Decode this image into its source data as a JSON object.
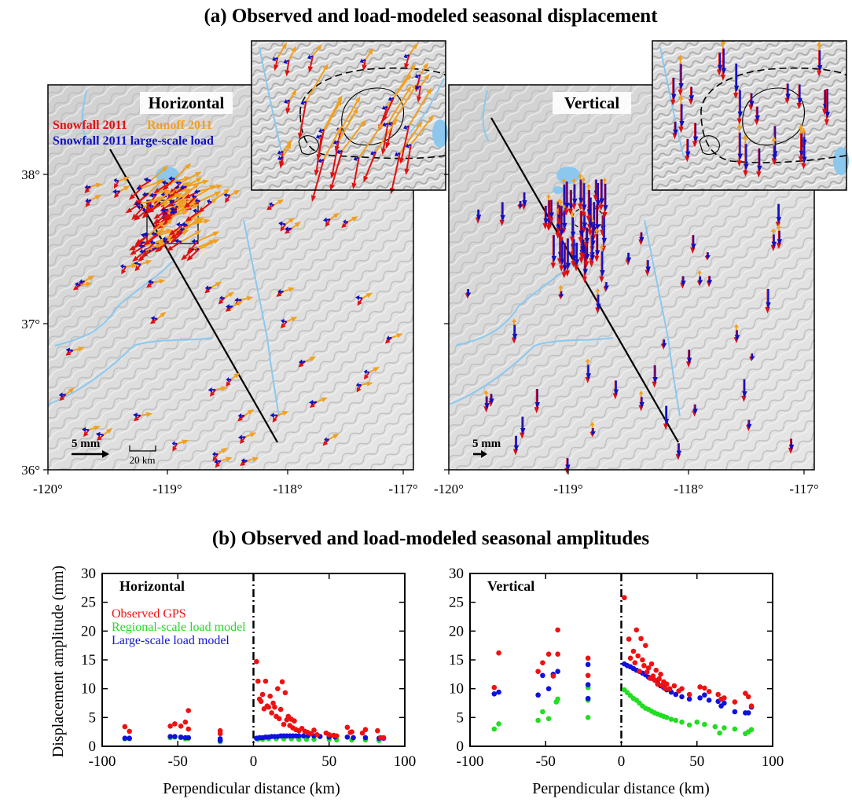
{
  "panel_a": {
    "title": "(a) Observed and load-modeled seasonal displacement",
    "lon_ticks": [
      "-120°",
      "-119°",
      "-118°",
      "-117°"
    ],
    "lat_ticks": [
      "38°",
      "37°",
      "36°"
    ],
    "colors": {
      "snowfall": "#e01010",
      "runoff": "#f0a020",
      "largescale": "#1010c0",
      "water": "#8cc8ee",
      "terrain": "#d8d8d8"
    },
    "maps": [
      {
        "label": "Horizontal",
        "legend": [
          "Snowfall 2011",
          "Runoff 2011",
          "Snowfall 2011 large-scale load"
        ],
        "scale_arrow": "5 mm",
        "distance_scale": "20 km"
      },
      {
        "label": "Vertical",
        "scale_arrow": "5 mm"
      }
    ]
  },
  "panel_b": {
    "title": "(b) Observed and load-modeled seasonal amplitudes",
    "ylabel": "Displacement amplitude (mm)",
    "xlabel": "Perpendicular distance (km)"
  },
  "chart_data": [
    {
      "type": "scatter",
      "title": "Horizontal",
      "xlabel": "Perpendicular distance (km)",
      "ylabel": "Displacement amplitude (mm)",
      "xlim": [
        -100,
        100
      ],
      "ylim": [
        0,
        30
      ],
      "x_ticks": [
        -100,
        -50,
        0,
        50,
        100
      ],
      "y_ticks": [
        0,
        5,
        10,
        15,
        20,
        25,
        30
      ],
      "legend_placement": "top-left",
      "series": [
        {
          "name": "Observed GPS",
          "color": "#ee1111",
          "points": [
            [
              -85,
              3.4
            ],
            [
              -82,
              2.6
            ],
            [
              -55,
              3.5
            ],
            [
              -52,
              3.9
            ],
            [
              -48,
              3.5
            ],
            [
              -45,
              4.2
            ],
            [
              -43,
              6.2
            ],
            [
              -43,
              3.0
            ],
            [
              -22,
              2.7
            ],
            [
              -22,
              2.2
            ],
            [
              2,
              14.7
            ],
            [
              3,
              11.3
            ],
            [
              4,
              8.2
            ],
            [
              5,
              7.8
            ],
            [
              6,
              9.0
            ],
            [
              7,
              6.5
            ],
            [
              8,
              11.3
            ],
            [
              9,
              7.0
            ],
            [
              10,
              6.8
            ],
            [
              11,
              8.7
            ],
            [
              12,
              5.8
            ],
            [
              13,
              7.5
            ],
            [
              14,
              6.8
            ],
            [
              15,
              5.2
            ],
            [
              16,
              10.0
            ],
            [
              17,
              4.8
            ],
            [
              18,
              6.4
            ],
            [
              19,
              11.2
            ],
            [
              20,
              3.8
            ],
            [
              21,
              9.3
            ],
            [
              22,
              4.6
            ],
            [
              23,
              5.2
            ],
            [
              24,
              3.6
            ],
            [
              25,
              4.7
            ],
            [
              26,
              3.2
            ],
            [
              27,
              4.4
            ],
            [
              28,
              2.9
            ],
            [
              30,
              2.7
            ],
            [
              32,
              3.1
            ],
            [
              34,
              2.6
            ],
            [
              36,
              2.4
            ],
            [
              38,
              2.2
            ],
            [
              40,
              2.8
            ],
            [
              42,
              2.0
            ],
            [
              48,
              2.3
            ],
            [
              50,
              2.0
            ],
            [
              53,
              1.9
            ],
            [
              55,
              1.8
            ],
            [
              62,
              3.3
            ],
            [
              64,
              2.4
            ],
            [
              65,
              2.5
            ],
            [
              72,
              2.3
            ],
            [
              74,
              2.9
            ],
            [
              82,
              2.7
            ],
            [
              84,
              1.5
            ],
            [
              86,
              1.5
            ]
          ]
        },
        {
          "name": "Regional-scale load model",
          "color": "#22dd22",
          "points": [
            [
              -85,
              1.3
            ],
            [
              -82,
              1.3
            ],
            [
              -55,
              1.5
            ],
            [
              -52,
              1.6
            ],
            [
              -48,
              1.5
            ],
            [
              -45,
              1.3
            ],
            [
              -43,
              1.4
            ],
            [
              -22,
              0.8
            ],
            [
              3,
              1.2
            ],
            [
              6,
              1.2
            ],
            [
              10,
              1.3
            ],
            [
              15,
              1.3
            ],
            [
              20,
              1.3
            ],
            [
              25,
              1.3
            ],
            [
              30,
              1.2
            ],
            [
              35,
              1.2
            ],
            [
              40,
              1.2
            ],
            [
              50,
              1.2
            ],
            [
              55,
              1.1
            ],
            [
              65,
              1.1
            ],
            [
              74,
              1.1
            ],
            [
              83,
              1.0
            ]
          ]
        },
        {
          "name": "Large-scale load model",
          "color": "#1111dd",
          "points": [
            [
              -85,
              1.4
            ],
            [
              -82,
              1.4
            ],
            [
              -55,
              1.7
            ],
            [
              -52,
              1.7
            ],
            [
              -48,
              1.6
            ],
            [
              -45,
              1.5
            ],
            [
              -43,
              1.5
            ],
            [
              -22,
              1.3
            ],
            [
              -22,
              1.0
            ],
            [
              2,
              1.4
            ],
            [
              4,
              1.5
            ],
            [
              6,
              1.5
            ],
            [
              8,
              1.6
            ],
            [
              10,
              1.6
            ],
            [
              12,
              1.7
            ],
            [
              14,
              1.7
            ],
            [
              16,
              1.7
            ],
            [
              18,
              1.8
            ],
            [
              20,
              1.8
            ],
            [
              22,
              1.8
            ],
            [
              24,
              1.8
            ],
            [
              26,
              1.8
            ],
            [
              28,
              1.8
            ],
            [
              30,
              1.8
            ],
            [
              33,
              1.8
            ],
            [
              36,
              1.8
            ],
            [
              40,
              1.8
            ],
            [
              44,
              1.7
            ],
            [
              50,
              1.6
            ],
            [
              54,
              1.6
            ],
            [
              62,
              1.6
            ],
            [
              66,
              1.5
            ],
            [
              74,
              1.5
            ],
            [
              83,
              1.4
            ],
            [
              86,
              1.4
            ]
          ]
        }
      ]
    },
    {
      "type": "scatter",
      "title": "Vertical",
      "xlabel": "Perpendicular distance (km)",
      "xlim": [
        -100,
        100
      ],
      "ylim": [
        0,
        30
      ],
      "x_ticks": [
        -100,
        -50,
        0,
        50,
        100
      ],
      "y_ticks": [
        0,
        5,
        10,
        15,
        20,
        25,
        30
      ],
      "series": [
        {
          "name": "Observed GPS",
          "color": "#ee1111",
          "points": [
            [
              -84,
              10.2
            ],
            [
              -81,
              16.2
            ],
            [
              -55,
              13.0
            ],
            [
              -52,
              14.5
            ],
            [
              -48,
              16.0
            ],
            [
              -45,
              12.2
            ],
            [
              -42,
              20.2
            ],
            [
              -42,
              16.0
            ],
            [
              -22,
              15.3
            ],
            [
              -22,
              12.3
            ],
            [
              2,
              25.8
            ],
            [
              5,
              18.6
            ],
            [
              6,
              15.3
            ],
            [
              8,
              16.5
            ],
            [
              9,
              14.5
            ],
            [
              10,
              20.2
            ],
            [
              11,
              15.7
            ],
            [
              12,
              13.0
            ],
            [
              13,
              18.7
            ],
            [
              14,
              15.0
            ],
            [
              15,
              14.0
            ],
            [
              16,
              17.5
            ],
            [
              17,
              12.9
            ],
            [
              18,
              13.6
            ],
            [
              19,
              11.8
            ],
            [
              20,
              14.3
            ],
            [
              21,
              12.2
            ],
            [
              22,
              11.5
            ],
            [
              23,
              13.2
            ],
            [
              24,
              10.8
            ],
            [
              25,
              11.7
            ],
            [
              26,
              12.5
            ],
            [
              27,
              10.6
            ],
            [
              28,
              11.2
            ],
            [
              29,
              10.0
            ],
            [
              30,
              10.8
            ],
            [
              32,
              10.0
            ],
            [
              35,
              10.5
            ],
            [
              38,
              9.6
            ],
            [
              40,
              10.0
            ],
            [
              45,
              9.0
            ],
            [
              52,
              10.3
            ],
            [
              55,
              10.1
            ],
            [
              58,
              9.5
            ],
            [
              64,
              9.0
            ],
            [
              66,
              8.2
            ],
            [
              68,
              8.4
            ],
            [
              75,
              7.7
            ],
            [
              82,
              9.2
            ],
            [
              84,
              8.6
            ],
            [
              86,
              7.0
            ]
          ]
        },
        {
          "name": "Regional-scale load model",
          "color": "#22dd22",
          "points": [
            [
              -84,
              3.0
            ],
            [
              -81,
              3.9
            ],
            [
              -55,
              4.5
            ],
            [
              -52,
              6.0
            ],
            [
              -48,
              4.8
            ],
            [
              -43,
              7.7
            ],
            [
              -42,
              8.2
            ],
            [
              -22,
              10.2
            ],
            [
              -22,
              8.0
            ],
            [
              -22,
              5.0
            ],
            [
              2,
              9.8
            ],
            [
              4,
              9.3
            ],
            [
              6,
              8.8
            ],
            [
              8,
              8.3
            ],
            [
              10,
              8.0
            ],
            [
              12,
              7.5
            ],
            [
              14,
              7.0
            ],
            [
              16,
              6.6
            ],
            [
              18,
              6.4
            ],
            [
              20,
              6.1
            ],
            [
              22,
              5.8
            ],
            [
              24,
              5.6
            ],
            [
              26,
              5.4
            ],
            [
              28,
              5.2
            ],
            [
              30,
              5.0
            ],
            [
              33,
              4.7
            ],
            [
              36,
              4.5
            ],
            [
              40,
              4.2
            ],
            [
              45,
              3.7
            ],
            [
              50,
              4.2
            ],
            [
              55,
              3.8
            ],
            [
              62,
              3.4
            ],
            [
              65,
              2.3
            ],
            [
              68,
              3.2
            ],
            [
              75,
              3.0
            ],
            [
              82,
              2.2
            ],
            [
              84,
              2.5
            ],
            [
              86,
              2.9
            ]
          ]
        },
        {
          "name": "Large-scale load model",
          "color": "#1111dd",
          "points": [
            [
              -84,
              9.1
            ],
            [
              -81,
              9.4
            ],
            [
              -55,
              8.9
            ],
            [
              -52,
              12.3
            ],
            [
              -48,
              10.0
            ],
            [
              -45,
              12.5
            ],
            [
              -42,
              13.0
            ],
            [
              -22,
              14.2
            ],
            [
              -22,
              10.7
            ],
            [
              -22,
              8.3
            ],
            [
              2,
              14.3
            ],
            [
              4,
              14.0
            ],
            [
              6,
              13.8
            ],
            [
              8,
              13.5
            ],
            [
              10,
              13.2
            ],
            [
              12,
              13.0
            ],
            [
              14,
              12.7
            ],
            [
              16,
              12.4
            ],
            [
              18,
              12.0
            ],
            [
              20,
              11.8
            ],
            [
              22,
              11.5
            ],
            [
              24,
              11.0
            ],
            [
              26,
              10.5
            ],
            [
              28,
              10.2
            ],
            [
              30,
              9.8
            ],
            [
              33,
              9.4
            ],
            [
              36,
              9.0
            ],
            [
              40,
              8.6
            ],
            [
              45,
              8.2
            ],
            [
              52,
              8.4
            ],
            [
              55,
              8.9
            ],
            [
              58,
              8.0
            ],
            [
              64,
              7.8
            ],
            [
              66,
              7.0
            ],
            [
              68,
              7.5
            ],
            [
              75,
              6.0
            ],
            [
              82,
              5.8
            ],
            [
              84,
              5.8
            ],
            [
              86,
              6.8
            ]
          ]
        }
      ]
    }
  ]
}
